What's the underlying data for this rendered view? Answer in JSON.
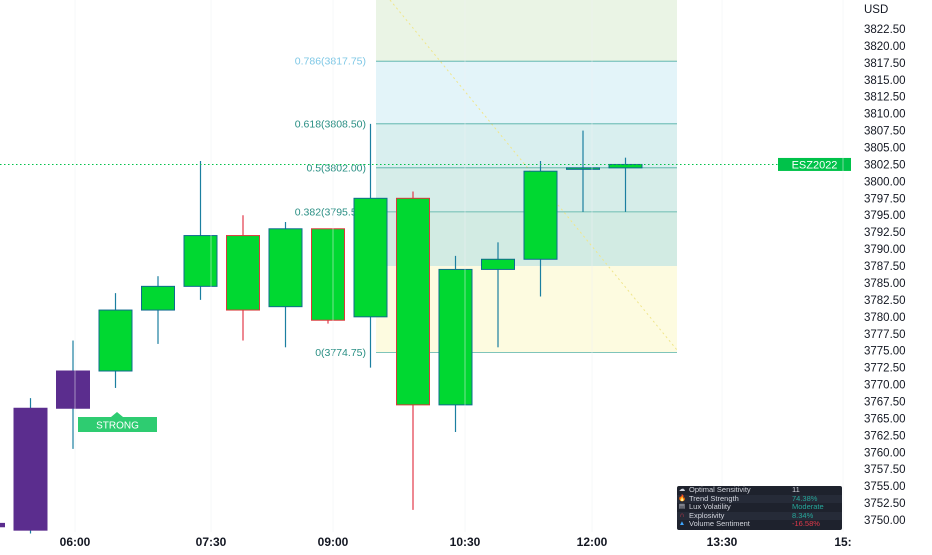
{
  "currency": "USD",
  "symbol_badge": "ESZ2022",
  "colors": {
    "bull_body": "#00d831",
    "bear_body": "#00d831",
    "bull_border": "#0f6b8f",
    "bear_border": "#d83a3a",
    "bull_wick": "#1b7fa0",
    "bear_wick": "#e2394a",
    "purple": "#5b2d8e",
    "fib_line": "#2a9d8f",
    "badge": "#00c24a",
    "strong_label": "#2ecc71"
  },
  "chart_data": {
    "type": "candlestick",
    "y_axis": {
      "min": 3747.5,
      "max": 3825.0,
      "ticks": [
        "3822.50",
        "3820.00",
        "3817.50",
        "3815.00",
        "3812.50",
        "3810.00",
        "3807.50",
        "3805.00",
        "3802.50",
        "3800.00",
        "3797.50",
        "3795.00",
        "3792.50",
        "3790.00",
        "3787.50",
        "3785.00",
        "3782.50",
        "3780.00",
        "3777.50",
        "3775.00",
        "3772.50",
        "3770.00",
        "3767.50",
        "3765.00",
        "3762.50",
        "3760.00",
        "3757.50",
        "3755.00",
        "3752.50",
        "3750.00"
      ]
    },
    "x_axis": {
      "labels": [
        "06:00",
        "07:30",
        "09:00",
        "10:30",
        "12:00",
        "13:30",
        "15:"
      ],
      "bold": [
        true,
        false,
        true,
        false,
        true,
        false,
        true
      ]
    },
    "candles": [
      {
        "x": 0,
        "o": 3749.5,
        "h": 3749.5,
        "l": 3749.0,
        "c": 3749.0,
        "style": "purple"
      },
      {
        "x": 1,
        "o": 3748.5,
        "h": 3768.0,
        "l": 3748.0,
        "c": 3766.5,
        "style": "purple"
      },
      {
        "x": 2,
        "o": 3766.5,
        "h": 3776.5,
        "l": 3760.5,
        "c": 3772.0,
        "style": "purple"
      },
      {
        "x": 3,
        "o": 3772.0,
        "h": 3783.5,
        "l": 3769.5,
        "c": 3781.0,
        "style": "bull"
      },
      {
        "x": 4,
        "o": 3781.0,
        "h": 3786.0,
        "l": 3776.0,
        "c": 3784.5,
        "style": "bull"
      },
      {
        "x": 5,
        "o": 3784.5,
        "h": 3803.0,
        "l": 3782.5,
        "c": 3792.0,
        "style": "bull"
      },
      {
        "x": 6,
        "o": 3792.0,
        "h": 3795.0,
        "l": 3776.5,
        "c": 3781.0,
        "style": "bear"
      },
      {
        "x": 7,
        "o": 3781.5,
        "h": 3794.0,
        "l": 3775.5,
        "c": 3793.0,
        "style": "bull"
      },
      {
        "x": 8,
        "o": 3793.0,
        "h": 3793.0,
        "l": 3779.0,
        "c": 3779.5,
        "style": "bear"
      },
      {
        "x": 9,
        "o": 3780.0,
        "h": 3808.5,
        "l": 3772.5,
        "c": 3797.5,
        "style": "bull"
      },
      {
        "x": 10,
        "o": 3797.5,
        "h": 3798.5,
        "l": 3751.5,
        "c": 3767.0,
        "style": "bear"
      },
      {
        "x": 11,
        "o": 3767.0,
        "h": 3789.0,
        "l": 3763.0,
        "c": 3787.0,
        "style": "bull"
      },
      {
        "x": 12,
        "o": 3788.5,
        "h": 3791.0,
        "l": 3775.5,
        "c": 3787.0,
        "style": "bull"
      },
      {
        "x": 13,
        "o": 3788.5,
        "h": 3803.0,
        "l": 3783.0,
        "c": 3801.5,
        "style": "bull"
      },
      {
        "x": 14,
        "o": 3802.0,
        "h": 3807.5,
        "l": 3795.5,
        "c": 3802.0,
        "style": "bull"
      },
      {
        "x": 15,
        "o": 3802.5,
        "h": 3803.5,
        "l": 3795.5,
        "c": 3802.0,
        "style": "bull"
      }
    ],
    "fibonacci": [
      {
        "label": "0.786(3817.75)",
        "value": 3817.75
      },
      {
        "label": "0.618(3808.50)",
        "value": 3808.5
      },
      {
        "label": "0.5(3802.00)",
        "value": 3802.0
      },
      {
        "label": "0.382(3795.50)",
        "value": 3795.5
      },
      {
        "label": "0(3774.75)",
        "value": 3774.75
      }
    ],
    "current_price": 3802.5,
    "annotations": [
      {
        "text": "STRONG",
        "x": 2
      }
    ]
  },
  "dashboard": {
    "rows": [
      {
        "icon": "cloud-icon",
        "glyph": "☁",
        "name": "Optimal Sensitivity",
        "value": "11",
        "value_color": "#d1d4dc",
        "icon_color": "#d1d4dc"
      },
      {
        "icon": "fire-icon",
        "glyph": "🔥",
        "name": "Trend Strength",
        "value": "74.38%",
        "value_color": "#26a69a",
        "icon_color": "#ff9800"
      },
      {
        "icon": "chart-icon",
        "glyph": "▤",
        "name": "Lux Volatility",
        "value": "Moderate",
        "value_color": "#26a69a",
        "icon_color": "#d1d4dc"
      },
      {
        "icon": "magnet-icon",
        "glyph": "∩",
        "name": "Explosivity",
        "value": "8.34%",
        "value_color": "#26a69a",
        "icon_color": "#e2394a"
      },
      {
        "icon": "drop-icon",
        "glyph": "▲",
        "name": "Volume Sentiment",
        "value": "-16.58%",
        "value_color": "#e2394a",
        "icon_color": "#3fa7ff"
      }
    ]
  }
}
